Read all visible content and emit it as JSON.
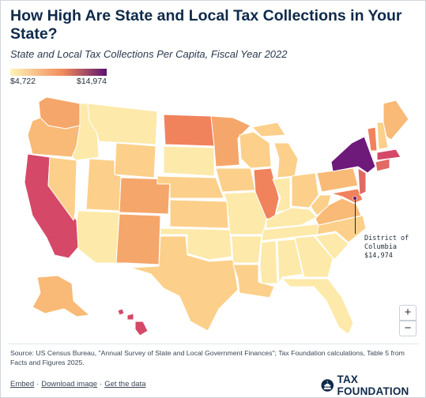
{
  "title": "How High Are State and Local Tax Collections in Your State?",
  "subtitle": "State and Local Tax Collections Per Capita, Fiscal Year 2022",
  "legend": {
    "min_label": "$4,722",
    "max_label": "$14,974",
    "min_color": "#fff3b8",
    "mid_color": "#f08a5a",
    "max_color": "#5b1270"
  },
  "annotation": {
    "line1": "District of",
    "line2": "Columbia",
    "line3": "$14,974"
  },
  "zoom": {
    "in_label": "+",
    "out_label": "−"
  },
  "source": "Source: US Census Bureau, \"Annual Survey of State and Local Government Finances\"; Tax Foundation calculations, Table 5 from Facts and Figures 2025.",
  "links": {
    "embed": "Embed",
    "download": "Download image",
    "data": "Get the data"
  },
  "brand": {
    "name": "TAX FOUNDATION",
    "icon": "capitol-dome-icon"
  },
  "colors": {
    "lowest": "#fde9a9",
    "low": "#fcd08a",
    "mid_low": "#f8ba76",
    "mid": "#f5a66a",
    "mid_high": "#f0825c",
    "high": "#e06a64",
    "higher": "#d54868",
    "top": "#6e1a7a",
    "border": "#ffffff"
  }
}
